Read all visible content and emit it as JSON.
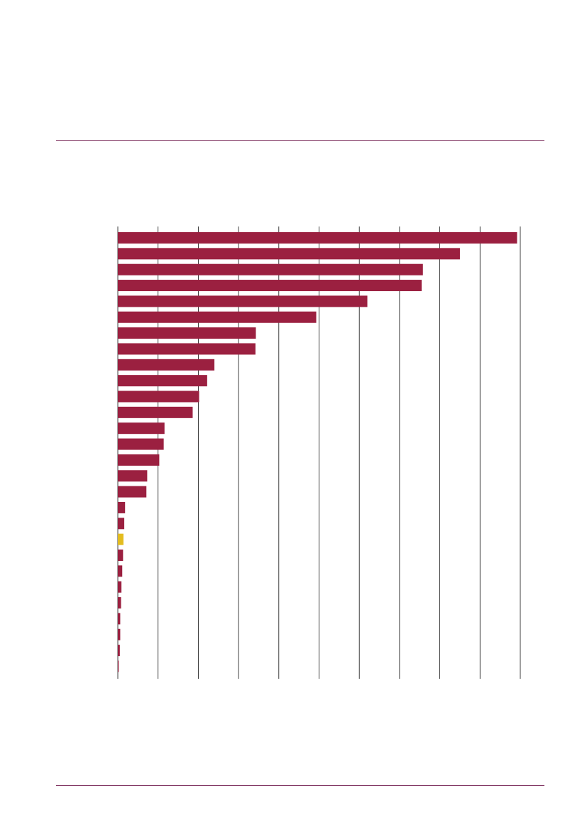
{
  "page": {
    "rule_color": "#7a2a5a"
  },
  "chart_data": {
    "type": "bar",
    "orientation": "horizontal",
    "title": "",
    "xlabel": "",
    "ylabel": "",
    "xlim": [
      0,
      10
    ],
    "grid": true,
    "bar_color": "#9b2040",
    "highlight_color": "#e3bc1f",
    "highlight_index": 19,
    "values": [
      9.92,
      8.5,
      7.58,
      7.55,
      6.2,
      4.93,
      3.43,
      3.42,
      2.4,
      2.22,
      2.02,
      1.86,
      1.16,
      1.14,
      1.03,
      0.73,
      0.71,
      0.18,
      0.16,
      0.14,
      0.13,
      0.11,
      0.09,
      0.08,
      0.06,
      0.06,
      0.05,
      0.02
    ]
  }
}
